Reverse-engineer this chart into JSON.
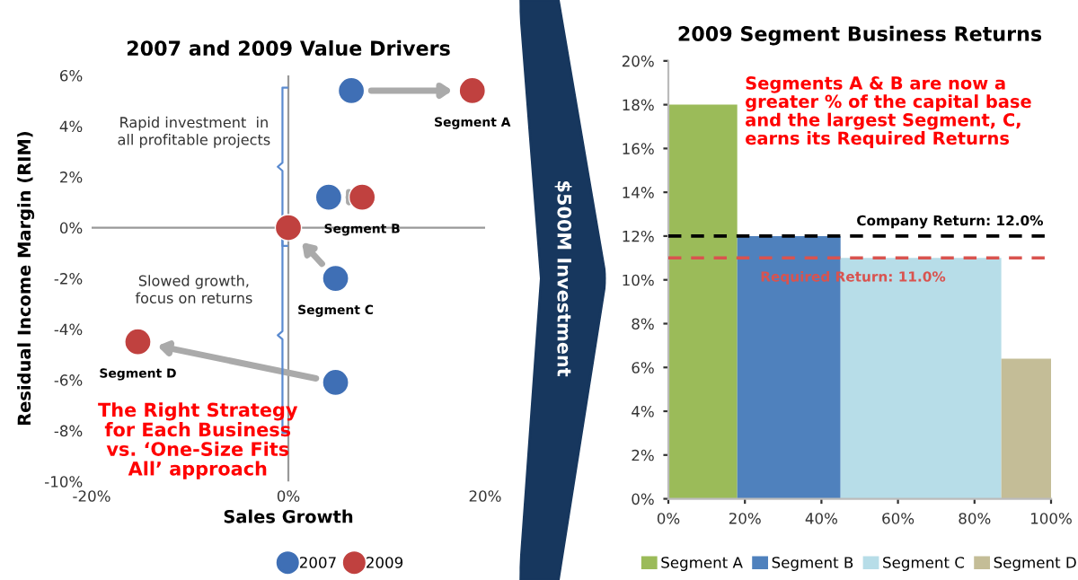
{
  "chart_data": [
    {
      "type": "scatter",
      "title": "2007 and 2009 Value Drivers",
      "xlabel": "Sales Growth",
      "ylabel": "Residual Income Margin (RIM)",
      "xlim": [
        -20,
        20
      ],
      "xticks": [
        {
          "value": -20,
          "label": "-20%"
        },
        {
          "value": 0,
          "label": "0%"
        },
        {
          "value": 20,
          "label": "20%"
        }
      ],
      "ylim": [
        -10,
        6
      ],
      "yticks": [
        {
          "value": -10,
          "label": "-10%"
        },
        {
          "value": -8,
          "label": "-8%"
        },
        {
          "value": -6,
          "label": "-6%"
        },
        {
          "value": -4,
          "label": "-4%"
        },
        {
          "value": -2,
          "label": "-2%"
        },
        {
          "value": 0,
          "label": "0%"
        },
        {
          "value": 2,
          "label": "2%"
        },
        {
          "value": 4,
          "label": "4%"
        },
        {
          "value": 6,
          "label": "6%"
        }
      ],
      "series": [
        {
          "name": "2007",
          "color": "#3f6fb5",
          "x": [
            6.4,
            4.1,
            4.8,
            4.8
          ],
          "values": [
            5.4,
            1.2,
            -2.0,
            -6.1
          ]
        },
        {
          "name": "2009",
          "color": "#c0413f",
          "x": [
            18.7,
            7.5,
            0,
            -15.3
          ],
          "values": [
            5.4,
            1.2,
            0,
            -4.5
          ]
        }
      ],
      "annotations": [
        {
          "text": "Segment A",
          "x": 18.7,
          "y": 5.4
        },
        {
          "text": "Segment B",
          "x": 7.5,
          "y": 1.2
        },
        {
          "text": "Segment C",
          "x": 4.8,
          "y": -2.0
        },
        {
          "text": "Segment D",
          "x": -15.3,
          "y": -4.5
        },
        "Rapid investment  in\nall profitable projects",
        "Slowed growth,\nfocus on returns",
        "The Right Strategy\nfor Each Business\nvs. ‘One-Size Fits\nAll’ approach"
      ],
      "ref_lines": [
        {
          "axis": "x",
          "value": 0,
          "color": "#999999",
          "line_style": "solid"
        },
        {
          "axis": "y",
          "value": 0,
          "color": "#999999",
          "line_style": "solid"
        }
      ],
      "marker": "circle",
      "legend": "bottom",
      "grid": false
    },
    {
      "type": "other",
      "title": "$500M Investment"
    },
    {
      "type": "histogram",
      "title": "2009 Segment Business Returns",
      "xlim": [
        0,
        100
      ],
      "xticks": [
        {
          "value": 0,
          "label": "0%"
        },
        {
          "value": 20,
          "label": "20%"
        },
        {
          "value": 40,
          "label": "40%"
        },
        {
          "value": 60,
          "label": "60%"
        },
        {
          "value": 80,
          "label": "80%"
        },
        {
          "value": 100,
          "label": "100%"
        }
      ],
      "ylim": [
        0,
        20
      ],
      "yticks": [
        {
          "value": 0,
          "label": "0%"
        },
        {
          "value": 2,
          "label": "2%"
        },
        {
          "value": 4,
          "label": "4%"
        },
        {
          "value": 6,
          "label": "6%"
        },
        {
          "value": 8,
          "label": "8%"
        },
        {
          "value": 10,
          "label": "10%"
        },
        {
          "value": 12,
          "label": "12%"
        },
        {
          "value": 14,
          "label": "14%"
        },
        {
          "value": 16,
          "label": "16%"
        },
        {
          "value": 18,
          "label": "18%"
        },
        {
          "value": 20,
          "label": "20%"
        }
      ],
      "bins": [
        0,
        18,
        45,
        87,
        100
      ],
      "series": [
        {
          "name": "Segment A",
          "color": "#9bbb59",
          "values": [
            18,
            null,
            null,
            null
          ]
        },
        {
          "name": "Segment B",
          "color": "#4f81bd",
          "values": [
            null,
            12,
            null,
            null
          ]
        },
        {
          "name": "Segment C",
          "color": "#b7dde8",
          "values": [
            null,
            null,
            11,
            null
          ]
        },
        {
          "name": "Segment D",
          "color": "#c4bd97",
          "values": [
            null,
            null,
            null,
            6.4
          ]
        }
      ],
      "ref_lines": [
        {
          "axis": "y",
          "value": 12,
          "label": "Company Return: 12.0%",
          "color": "#000000",
          "line_style": "dashed"
        },
        {
          "axis": "y",
          "value": 11,
          "label": "Required Return: 11.0%",
          "color": "#d9534f",
          "line_style": "dashed"
        }
      ],
      "annotations": [
        "Segments A & B are now a\ngreater % of the capital base\nand the largest Segment, C,\nearns its Required Returns"
      ],
      "legend": "bottom",
      "grid": false
    }
  ]
}
